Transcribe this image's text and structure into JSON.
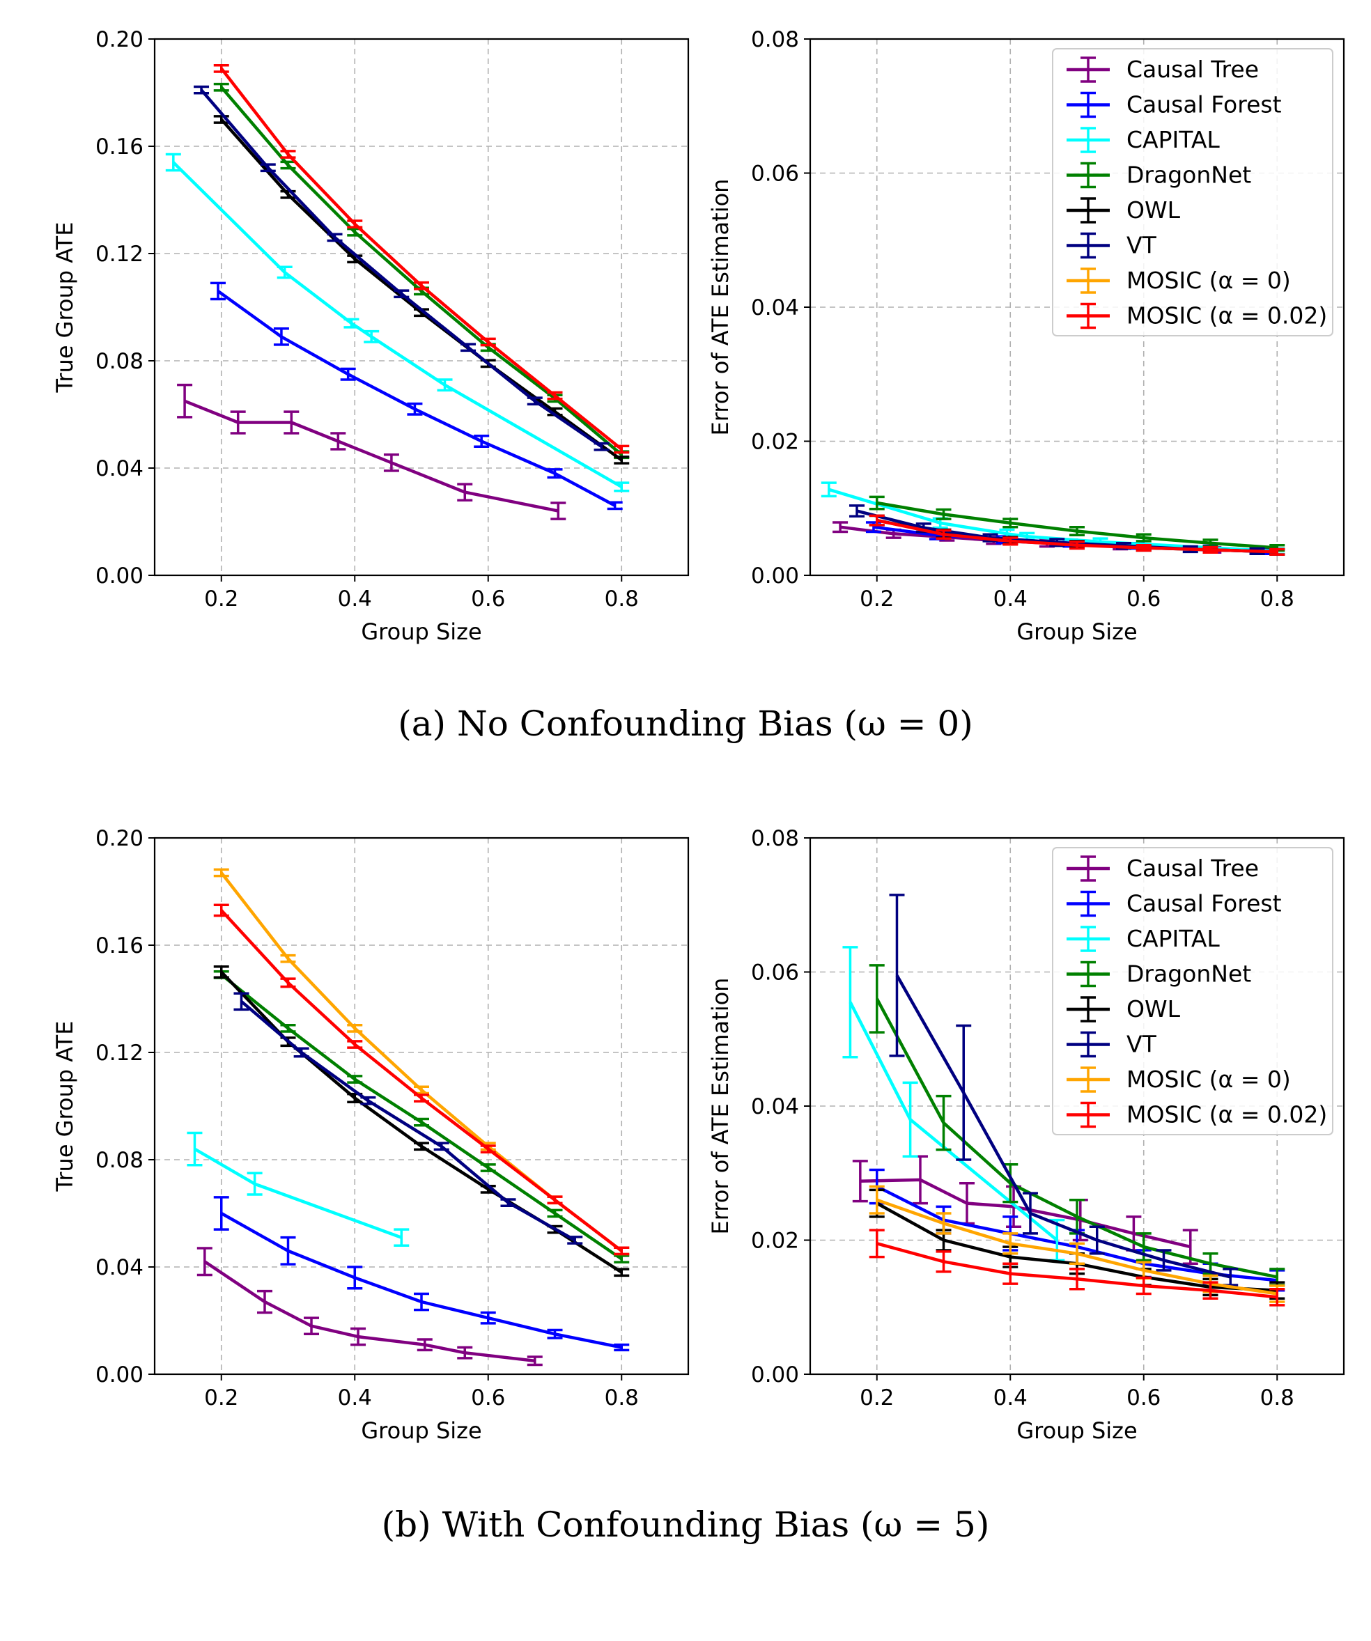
{
  "captions": {
    "a": "(a)  No Confounding Bias (ω = 0)",
    "b": "(b)  With Confounding Bias (ω = 5)"
  },
  "legend_entries": [
    "Causal Tree",
    "Causal Forest",
    "CAPITAL",
    "DragonNet",
    "OWL",
    "VT",
    "MOSIC (α = 0)",
    "MOSIC (α = 0.02)"
  ],
  "chart_data": [
    {
      "id": "a-left",
      "type": "line",
      "title": "",
      "xlabel": "Group Size",
      "ylabel": "True Group ATE",
      "xlim": [
        0.1,
        0.9
      ],
      "ylim": [
        0,
        0.2
      ],
      "xticks": [
        "0.2",
        "0.4",
        "0.6",
        "0.8"
      ],
      "xtick_values": [
        0.2,
        0.4,
        0.6,
        0.8
      ],
      "yticks": [
        "0.00",
        "0.04",
        "0.08",
        "0.12",
        "0.16",
        "0.20"
      ],
      "ytick_values": [
        0,
        0.04,
        0.08,
        0.12,
        0.16,
        0.2
      ],
      "grid": true,
      "legend": "none",
      "series": [
        {
          "name": "Causal Tree",
          "color": "#800080",
          "x": [
            0.145,
            0.225,
            0.305,
            0.375,
            0.455,
            0.565,
            0.705
          ],
          "y": [
            0.065,
            0.057,
            0.057,
            0.05,
            0.042,
            0.031,
            0.024
          ],
          "err": [
            0.006,
            0.004,
            0.004,
            0.003,
            0.003,
            0.003,
            0.003
          ]
        },
        {
          "name": "Causal Forest",
          "color": "#0000ff",
          "x": [
            0.195,
            0.29,
            0.39,
            0.49,
            0.59,
            0.7,
            0.79
          ],
          "y": [
            0.106,
            0.089,
            0.075,
            0.062,
            0.05,
            0.038,
            0.026
          ],
          "err": [
            0.003,
            0.003,
            0.002,
            0.002,
            0.002,
            0.0015,
            0.0012
          ]
        },
        {
          "name": "CAPITAL",
          "color": "#00ffff",
          "x": [
            0.128,
            0.295,
            0.395,
            0.425,
            0.535,
            0.8
          ],
          "y": [
            0.154,
            0.113,
            0.094,
            0.089,
            0.071,
            0.033
          ],
          "err": [
            0.003,
            0.002,
            0.0015,
            0.002,
            0.002,
            0.0015
          ]
        },
        {
          "name": "DragonNet",
          "color": "#008000",
          "x": [
            0.2,
            0.3,
            0.4,
            0.5,
            0.6,
            0.7,
            0.8
          ],
          "y": [
            0.182,
            0.153,
            0.128,
            0.106,
            0.085,
            0.066,
            0.045
          ],
          "err": [
            0.0012,
            0.0012,
            0.0012,
            0.0012,
            0.0012,
            0.0012,
            0.0012
          ]
        },
        {
          "name": "OWL",
          "color": "#000000",
          "x": [
            0.2,
            0.3,
            0.4,
            0.5,
            0.6,
            0.7,
            0.8
          ],
          "y": [
            0.17,
            0.142,
            0.118,
            0.098,
            0.079,
            0.061,
            0.043
          ],
          "err": [
            0.0012,
            0.0012,
            0.0012,
            0.0012,
            0.0012,
            0.0012,
            0.0012
          ]
        },
        {
          "name": "VT",
          "color": "#000080",
          "x": [
            0.17,
            0.27,
            0.37,
            0.47,
            0.57,
            0.67,
            0.77
          ],
          "y": [
            0.181,
            0.152,
            0.126,
            0.105,
            0.085,
            0.065,
            0.048
          ],
          "err": [
            0.0012,
            0.0012,
            0.0012,
            0.0012,
            0.0012,
            0.0012,
            0.0012
          ]
        },
        {
          "name": "MOSIC (α = 0.02)",
          "color": "#ff0000",
          "x": [
            0.2,
            0.3,
            0.4,
            0.5,
            0.6,
            0.7,
            0.8
          ],
          "y": [
            0.189,
            0.157,
            0.131,
            0.108,
            0.087,
            0.067,
            0.047
          ],
          "err": [
            0.0012,
            0.0012,
            0.0012,
            0.0012,
            0.0012,
            0.0012,
            0.0012
          ]
        }
      ]
    },
    {
      "id": "a-right",
      "type": "line",
      "title": "",
      "xlabel": "Group Size",
      "ylabel": "Error of ATE Estimation",
      "xlim": [
        0.1,
        0.9
      ],
      "ylim": [
        0,
        0.08
      ],
      "xticks": [
        "0.2",
        "0.4",
        "0.6",
        "0.8"
      ],
      "xtick_values": [
        0.2,
        0.4,
        0.6,
        0.8
      ],
      "yticks": [
        "0.00",
        "0.02",
        "0.04",
        "0.06",
        "0.08"
      ],
      "ytick_values": [
        0,
        0.02,
        0.04,
        0.06,
        0.08
      ],
      "grid": true,
      "legend": "top-right",
      "series": [
        {
          "name": "Causal Tree",
          "color": "#800080",
          "x": [
            0.145,
            0.225,
            0.305,
            0.375,
            0.455,
            0.565,
            0.705
          ],
          "y": [
            0.0072,
            0.0062,
            0.0057,
            0.0052,
            0.0048,
            0.0043,
            0.0038
          ],
          "err": [
            0.0007,
            0.0006,
            0.0005,
            0.0005,
            0.0005,
            0.0004,
            0.0004
          ]
        },
        {
          "name": "Causal Forest",
          "color": "#0000ff",
          "x": [
            0.195,
            0.29,
            0.39,
            0.49,
            0.59,
            0.7,
            0.79
          ],
          "y": [
            0.0072,
            0.006,
            0.0053,
            0.0048,
            0.0044,
            0.004,
            0.0036
          ],
          "err": [
            0.0007,
            0.0006,
            0.0005,
            0.0005,
            0.0004,
            0.0004,
            0.0004
          ]
        },
        {
          "name": "CAPITAL",
          "color": "#00ffff",
          "x": [
            0.128,
            0.295,
            0.395,
            0.425,
            0.535,
            0.8
          ],
          "y": [
            0.0128,
            0.0078,
            0.0062,
            0.0058,
            0.005,
            0.0036
          ],
          "err": [
            0.001,
            0.0007,
            0.0006,
            0.0005,
            0.0005,
            0.0004
          ]
        },
        {
          "name": "DragonNet",
          "color": "#008000",
          "x": [
            0.2,
            0.3,
            0.4,
            0.5,
            0.6,
            0.7,
            0.8
          ],
          "y": [
            0.0108,
            0.0091,
            0.0078,
            0.0066,
            0.0056,
            0.0048,
            0.0041
          ],
          "err": [
            0.0009,
            0.0007,
            0.0006,
            0.0006,
            0.0005,
            0.0005,
            0.0004
          ]
        },
        {
          "name": "OWL",
          "color": "#000000",
          "x": [
            0.2,
            0.3,
            0.4,
            0.5,
            0.6,
            0.7,
            0.8
          ],
          "y": [
            0.0082,
            0.0062,
            0.0052,
            0.0046,
            0.0041,
            0.0038,
            0.0035
          ],
          "err": [
            0.0007,
            0.0006,
            0.0005,
            0.0005,
            0.0004,
            0.0004,
            0.0004
          ]
        },
        {
          "name": "VT",
          "color": "#000080",
          "x": [
            0.17,
            0.27,
            0.37,
            0.47,
            0.57,
            0.67,
            0.77
          ],
          "y": [
            0.0096,
            0.0071,
            0.0056,
            0.0049,
            0.0044,
            0.0039,
            0.0036
          ],
          "err": [
            0.0008,
            0.0006,
            0.0005,
            0.0005,
            0.0004,
            0.0004,
            0.0004
          ]
        },
        {
          "name": "MOSIC (α = 0.02)",
          "color": "#ff0000",
          "x": [
            0.2,
            0.3,
            0.4,
            0.5,
            0.6,
            0.7,
            0.8
          ],
          "y": [
            0.0082,
            0.0061,
            0.0051,
            0.0045,
            0.0041,
            0.0038,
            0.0035
          ],
          "err": [
            0.0007,
            0.0006,
            0.0005,
            0.0005,
            0.0004,
            0.0004,
            0.0004
          ]
        }
      ]
    },
    {
      "id": "b-left",
      "type": "line",
      "title": "",
      "xlabel": "Group Size",
      "ylabel": "True Group ATE",
      "xlim": [
        0.1,
        0.9
      ],
      "ylim": [
        0,
        0.2
      ],
      "xticks": [
        "0.2",
        "0.4",
        "0.6",
        "0.8"
      ],
      "xtick_values": [
        0.2,
        0.4,
        0.6,
        0.8
      ],
      "yticks": [
        "0.00",
        "0.04",
        "0.08",
        "0.12",
        "0.16",
        "0.20"
      ],
      "ytick_values": [
        0,
        0.04,
        0.08,
        0.12,
        0.16,
        0.2
      ],
      "grid": true,
      "legend": "none",
      "series": [
        {
          "name": "Causal Tree",
          "color": "#800080",
          "x": [
            0.175,
            0.265,
            0.335,
            0.405,
            0.505,
            0.565,
            0.67
          ],
          "y": [
            0.042,
            0.027,
            0.018,
            0.014,
            0.011,
            0.008,
            0.005
          ],
          "err": [
            0.005,
            0.004,
            0.003,
            0.003,
            0.002,
            0.002,
            0.0015
          ]
        },
        {
          "name": "Causal Forest",
          "color": "#0000ff",
          "x": [
            0.2,
            0.3,
            0.4,
            0.5,
            0.6,
            0.7,
            0.8
          ],
          "y": [
            0.06,
            0.046,
            0.036,
            0.027,
            0.021,
            0.015,
            0.01
          ],
          "err": [
            0.006,
            0.005,
            0.004,
            0.003,
            0.002,
            0.0015,
            0.001
          ]
        },
        {
          "name": "CAPITAL",
          "color": "#00ffff",
          "x": [
            0.16,
            0.25,
            0.47
          ],
          "y": [
            0.084,
            0.071,
            0.051
          ],
          "err": [
            0.006,
            0.004,
            0.003
          ]
        },
        {
          "name": "DragonNet",
          "color": "#008000",
          "x": [
            0.2,
            0.3,
            0.4,
            0.5,
            0.6,
            0.7,
            0.8
          ],
          "y": [
            0.149,
            0.129,
            0.11,
            0.094,
            0.077,
            0.06,
            0.043
          ],
          "err": [
            0.0012,
            0.0012,
            0.0012,
            0.0012,
            0.0012,
            0.0012,
            0.0012
          ]
        },
        {
          "name": "OWL",
          "color": "#000000",
          "x": [
            0.2,
            0.3,
            0.4,
            0.5,
            0.6,
            0.7,
            0.8
          ],
          "y": [
            0.15,
            0.124,
            0.103,
            0.085,
            0.069,
            0.054,
            0.038
          ],
          "err": [
            0.002,
            0.0015,
            0.0015,
            0.0012,
            0.0012,
            0.0012,
            0.0012
          ]
        },
        {
          "name": "VT",
          "color": "#000080",
          "x": [
            0.23,
            0.32,
            0.42,
            0.53,
            0.63,
            0.73
          ],
          "y": [
            0.139,
            0.12,
            0.102,
            0.085,
            0.064,
            0.05
          ],
          "err": [
            0.003,
            0.0015,
            0.0012,
            0.0012,
            0.0012,
            0.0012
          ]
        },
        {
          "name": "MOSIC (α = 0)",
          "color": "#ffa500",
          "x": [
            0.2,
            0.3,
            0.4,
            0.5,
            0.6,
            0.7,
            0.8
          ],
          "y": [
            0.187,
            0.155,
            0.129,
            0.106,
            0.085,
            0.065,
            0.046
          ],
          "err": [
            0.0012,
            0.0012,
            0.0012,
            0.0012,
            0.0012,
            0.0012,
            0.0012
          ]
        },
        {
          "name": "MOSIC (α = 0.02)",
          "color": "#ff0000",
          "x": [
            0.2,
            0.3,
            0.4,
            0.5,
            0.6,
            0.7,
            0.8
          ],
          "y": [
            0.173,
            0.146,
            0.123,
            0.103,
            0.084,
            0.065,
            0.046
          ],
          "err": [
            0.002,
            0.0015,
            0.0012,
            0.0012,
            0.0012,
            0.0012,
            0.0012
          ]
        }
      ]
    },
    {
      "id": "b-right",
      "type": "line",
      "title": "",
      "xlabel": "Group Size",
      "ylabel": "Error of ATE Estimation",
      "xlim": [
        0.1,
        0.9
      ],
      "ylim": [
        0,
        0.08
      ],
      "xticks": [
        "0.2",
        "0.4",
        "0.6",
        "0.8"
      ],
      "xtick_values": [
        0.2,
        0.4,
        0.6,
        0.8
      ],
      "yticks": [
        "0.00",
        "0.02",
        "0.04",
        "0.06",
        "0.08"
      ],
      "ytick_values": [
        0,
        0.02,
        0.04,
        0.06,
        0.08
      ],
      "grid": true,
      "legend": "top-right",
      "series": [
        {
          "name": "Causal Tree",
          "color": "#800080",
          "x": [
            0.175,
            0.265,
            0.335,
            0.405,
            0.505,
            0.585,
            0.67
          ],
          "y": [
            0.0288,
            0.029,
            0.0255,
            0.025,
            0.023,
            0.021,
            0.019
          ],
          "err": [
            0.003,
            0.0035,
            0.003,
            0.003,
            0.003,
            0.0025,
            0.0025
          ]
        },
        {
          "name": "Causal Forest",
          "color": "#0000ff",
          "x": [
            0.2,
            0.3,
            0.4,
            0.5,
            0.6,
            0.7,
            0.8
          ],
          "y": [
            0.028,
            0.023,
            0.021,
            0.019,
            0.0165,
            0.015,
            0.014
          ],
          "err": [
            0.0025,
            0.002,
            0.0025,
            0.0025,
            0.002,
            0.0015,
            0.0015
          ]
        },
        {
          "name": "CAPITAL",
          "color": "#00ffff",
          "x": [
            0.16,
            0.25,
            0.47
          ],
          "y": [
            0.0555,
            0.038,
            0.02
          ],
          "err": [
            0.0082,
            0.0055,
            0.003
          ]
        },
        {
          "name": "DragonNet",
          "color": "#008000",
          "x": [
            0.2,
            0.3,
            0.4,
            0.5,
            0.6,
            0.7,
            0.8
          ],
          "y": [
            0.056,
            0.0375,
            0.0285,
            0.0235,
            0.019,
            0.0165,
            0.0145
          ],
          "err": [
            0.005,
            0.004,
            0.0028,
            0.0025,
            0.002,
            0.0015,
            0.0012
          ]
        },
        {
          "name": "OWL",
          "color": "#000000",
          "x": [
            0.2,
            0.3,
            0.4,
            0.5,
            0.6,
            0.7,
            0.8
          ],
          "y": [
            0.0255,
            0.02,
            0.0175,
            0.0165,
            0.0145,
            0.013,
            0.0125
          ],
          "err": [
            0.002,
            0.0015,
            0.0015,
            0.0015,
            0.0012,
            0.0012,
            0.0012
          ]
        },
        {
          "name": "VT",
          "color": "#000080",
          "x": [
            0.23,
            0.33,
            0.43,
            0.53,
            0.63,
            0.73
          ],
          "y": [
            0.0595,
            0.042,
            0.024,
            0.02,
            0.017,
            0.0145
          ],
          "err": [
            0.012,
            0.01,
            0.003,
            0.002,
            0.0015,
            0.0012
          ]
        },
        {
          "name": "MOSIC (α = 0)",
          "color": "#ffa500",
          "x": [
            0.2,
            0.3,
            0.4,
            0.5,
            0.6,
            0.7,
            0.8
          ],
          "y": [
            0.026,
            0.0225,
            0.0195,
            0.018,
            0.0155,
            0.0135,
            0.012
          ],
          "err": [
            0.002,
            0.0015,
            0.0015,
            0.0015,
            0.0012,
            0.0012,
            0.0012
          ]
        },
        {
          "name": "MOSIC (α = 0.02)",
          "color": "#ff0000",
          "x": [
            0.2,
            0.3,
            0.4,
            0.5,
            0.6,
            0.7,
            0.8
          ],
          "y": [
            0.0195,
            0.0168,
            0.015,
            0.0142,
            0.0132,
            0.0125,
            0.0115
          ],
          "err": [
            0.002,
            0.0015,
            0.0015,
            0.0015,
            0.0012,
            0.0012,
            0.0012
          ]
        }
      ]
    }
  ]
}
